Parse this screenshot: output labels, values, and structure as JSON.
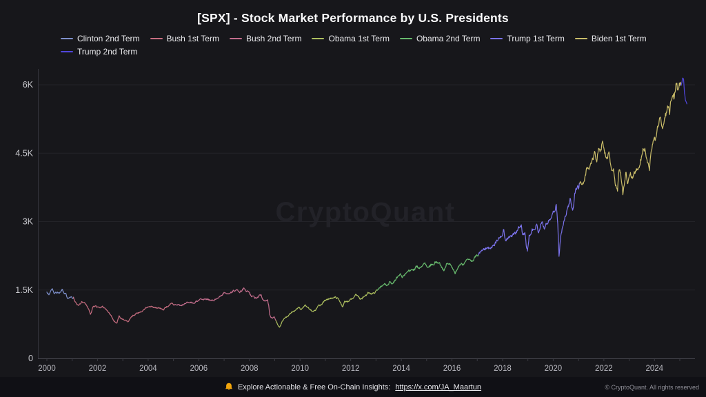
{
  "page": {
    "title": "[SPX] - Stock Market Performance by U.S. Presidents",
    "watermark": "CryptoQuant",
    "background_color": "#17171b"
  },
  "footer": {
    "promo_text": "Explore Actionable & Free On-Chain Insights:",
    "promo_link_text": "https://x.com/JA_Maartun",
    "copyright_text": "© CryptoQuant. All rights reserved",
    "bell_color": "#f2a50c",
    "background_color": "#101015"
  },
  "chart_data": {
    "type": "line",
    "title": "[SPX] - Stock Market Performance by U.S. Presidents",
    "xlabel": "",
    "ylabel": "",
    "legend_position": "top-left",
    "grid": "horizontal",
    "xlim": [
      1999.7,
      2025.5
    ],
    "ylim": [
      0,
      6300
    ],
    "x_ticks": [
      2000,
      2002,
      2004,
      2006,
      2008,
      2010,
      2012,
      2014,
      2016,
      2018,
      2020,
      2022,
      2024
    ],
    "y_ticks": [
      {
        "value": 0,
        "label": "0"
      },
      {
        "value": 1500,
        "label": "1.5K"
      },
      {
        "value": 3000,
        "label": "3K"
      },
      {
        "value": 4500,
        "label": "4.5K"
      },
      {
        "value": 6000,
        "label": "6K"
      }
    ],
    "axis_colors": {
      "tick_label": "#c9c9ce",
      "x_tick_label": "#b9b9c0",
      "grid": "#232329",
      "axis": "#46464e",
      "watermark": "#222228"
    },
    "series": [
      {
        "name": "Clinton 2nd Term",
        "color": "#7e90cc",
        "points": [
          [
            2000.0,
            1455
          ],
          [
            2000.08,
            1394
          ],
          [
            2000.17,
            1499
          ],
          [
            2000.22,
            1527
          ],
          [
            2000.3,
            1420
          ],
          [
            2000.42,
            1454
          ],
          [
            2000.5,
            1431
          ],
          [
            2000.6,
            1517
          ],
          [
            2000.67,
            1437
          ],
          [
            2000.75,
            1429
          ],
          [
            2000.83,
            1315
          ],
          [
            2000.92,
            1346
          ],
          [
            2001.0,
            1320
          ],
          [
            2001.05,
            1342
          ]
        ]
      },
      {
        "name": "Bush 1st Term",
        "color": "#c76d80",
        "points": [
          [
            2001.05,
            1342
          ],
          [
            2001.13,
            1240
          ],
          [
            2001.25,
            1160
          ],
          [
            2001.38,
            1249
          ],
          [
            2001.5,
            1211
          ],
          [
            2001.6,
            1133
          ],
          [
            2001.72,
            966
          ],
          [
            2001.83,
            1139
          ],
          [
            2001.92,
            1148
          ],
          [
            2002.0,
            1130
          ],
          [
            2002.1,
            1106
          ],
          [
            2002.2,
            1147
          ],
          [
            2002.35,
            1067
          ],
          [
            2002.5,
            968
          ],
          [
            2002.56,
            911
          ],
          [
            2002.65,
            815
          ],
          [
            2002.77,
            777
          ],
          [
            2002.85,
            936
          ],
          [
            2002.92,
            880
          ],
          [
            2003.0,
            856
          ],
          [
            2003.1,
            841
          ],
          [
            2003.2,
            800
          ],
          [
            2003.35,
            916
          ],
          [
            2003.5,
            975
          ],
          [
            2003.65,
            1008
          ],
          [
            2003.8,
            1050
          ],
          [
            2003.92,
            1112
          ],
          [
            2004.0,
            1131
          ],
          [
            2004.15,
            1126
          ],
          [
            2004.3,
            1107
          ],
          [
            2004.45,
            1101
          ],
          [
            2004.6,
            1064
          ],
          [
            2004.7,
            1114
          ],
          [
            2004.85,
            1173
          ],
          [
            2004.95,
            1212
          ],
          [
            2005.05,
            1181
          ]
        ]
      },
      {
        "name": "Bush 2nd Term",
        "color": "#c26d8c",
        "points": [
          [
            2005.05,
            1181
          ],
          [
            2005.2,
            1180
          ],
          [
            2005.32,
            1156
          ],
          [
            2005.45,
            1198
          ],
          [
            2005.55,
            1234
          ],
          [
            2005.65,
            1228
          ],
          [
            2005.78,
            1207
          ],
          [
            2005.88,
            1249
          ],
          [
            2006.0,
            1280
          ],
          [
            2006.15,
            1294
          ],
          [
            2006.32,
            1310
          ],
          [
            2006.45,
            1270
          ],
          [
            2006.55,
            1276
          ],
          [
            2006.7,
            1303
          ],
          [
            2006.85,
            1367
          ],
          [
            2006.95,
            1418
          ],
          [
            2007.05,
            1438
          ],
          [
            2007.2,
            1420
          ],
          [
            2007.38,
            1482
          ],
          [
            2007.5,
            1503
          ],
          [
            2007.6,
            1455
          ],
          [
            2007.7,
            1473
          ],
          [
            2007.78,
            1547
          ],
          [
            2007.85,
            1481
          ],
          [
            2007.95,
            1468
          ],
          [
            2008.05,
            1378
          ],
          [
            2008.2,
            1330
          ],
          [
            2008.28,
            1322
          ],
          [
            2008.38,
            1385
          ],
          [
            2008.45,
            1400
          ],
          [
            2008.55,
            1280
          ],
          [
            2008.65,
            1267
          ],
          [
            2008.72,
            1282
          ],
          [
            2008.76,
            1166
          ],
          [
            2008.8,
            968
          ],
          [
            2008.85,
            896
          ],
          [
            2008.9,
            876
          ],
          [
            2008.95,
            903
          ],
          [
            2009.0,
            890
          ],
          [
            2009.05,
            825
          ]
        ]
      },
      {
        "name": "Obama 1st Term",
        "color": "#aec05f",
        "points": [
          [
            2009.05,
            825
          ],
          [
            2009.12,
            735
          ],
          [
            2009.19,
            683
          ],
          [
            2009.28,
            797
          ],
          [
            2009.38,
            872
          ],
          [
            2009.5,
            919
          ],
          [
            2009.6,
            987
          ],
          [
            2009.7,
            1020
          ],
          [
            2009.78,
            1036
          ],
          [
            2009.88,
            1095
          ],
          [
            2009.95,
            1115
          ],
          [
            2010.05,
            1073
          ],
          [
            2010.2,
            1169
          ],
          [
            2010.35,
            1089
          ],
          [
            2010.5,
            1030
          ],
          [
            2010.6,
            1049
          ],
          [
            2010.7,
            1141
          ],
          [
            2010.85,
            1180
          ],
          [
            2010.95,
            1257
          ],
          [
            2011.05,
            1286
          ],
          [
            2011.2,
            1325
          ],
          [
            2011.35,
            1345
          ],
          [
            2011.5,
            1320
          ],
          [
            2011.6,
            1218
          ],
          [
            2011.68,
            1131
          ],
          [
            2011.78,
            1253
          ],
          [
            2011.85,
            1246
          ],
          [
            2011.95,
            1257
          ],
          [
            2012.05,
            1312
          ],
          [
            2012.2,
            1408
          ],
          [
            2012.4,
            1310
          ],
          [
            2012.55,
            1362
          ],
          [
            2012.7,
            1440
          ],
          [
            2012.78,
            1412
          ],
          [
            2012.85,
            1416
          ],
          [
            2012.95,
            1426
          ],
          [
            2013.05,
            1495
          ]
        ]
      },
      {
        "name": "Obama 2nd Term",
        "color": "#67b96d",
        "points": [
          [
            2013.05,
            1495
          ],
          [
            2013.2,
            1569
          ],
          [
            2013.35,
            1631
          ],
          [
            2013.45,
            1606
          ],
          [
            2013.55,
            1686
          ],
          [
            2013.62,
            1633
          ],
          [
            2013.7,
            1682
          ],
          [
            2013.8,
            1757
          ],
          [
            2013.88,
            1806
          ],
          [
            2013.95,
            1848
          ],
          [
            2014.05,
            1783
          ],
          [
            2014.2,
            1872
          ],
          [
            2014.35,
            1924
          ],
          [
            2014.5,
            1931
          ],
          [
            2014.6,
            2003
          ],
          [
            2014.7,
            1972
          ],
          [
            2014.8,
            2018
          ],
          [
            2014.88,
            2068
          ],
          [
            2014.95,
            2059
          ],
          [
            2015.05,
            1995
          ],
          [
            2015.2,
            2068
          ],
          [
            2015.38,
            2107
          ],
          [
            2015.5,
            2104
          ],
          [
            2015.62,
            1972
          ],
          [
            2015.68,
            1920
          ],
          [
            2015.8,
            2079
          ],
          [
            2015.88,
            2080
          ],
          [
            2015.95,
            2044
          ],
          [
            2016.05,
            1940
          ],
          [
            2016.12,
            1859
          ],
          [
            2016.2,
            1948
          ],
          [
            2016.35,
            2060
          ],
          [
            2016.5,
            2099
          ],
          [
            2016.6,
            2174
          ],
          [
            2016.7,
            2168
          ],
          [
            2016.8,
            2126
          ],
          [
            2016.88,
            2199
          ],
          [
            2016.95,
            2239
          ],
          [
            2017.05,
            2271
          ]
        ]
      },
      {
        "name": "Trump 1st Term",
        "color": "#7a72ea",
        "points": [
          [
            2017.05,
            2271
          ],
          [
            2017.2,
            2363
          ],
          [
            2017.35,
            2412
          ],
          [
            2017.5,
            2423
          ],
          [
            2017.6,
            2470
          ],
          [
            2017.7,
            2519
          ],
          [
            2017.8,
            2575
          ],
          [
            2017.88,
            2648
          ],
          [
            2017.95,
            2674
          ],
          [
            2018.05,
            2824
          ],
          [
            2018.12,
            2581
          ],
          [
            2018.2,
            2641
          ],
          [
            2018.28,
            2648
          ],
          [
            2018.4,
            2705
          ],
          [
            2018.5,
            2734
          ],
          [
            2018.6,
            2816
          ],
          [
            2018.7,
            2902
          ],
          [
            2018.74,
            2931
          ],
          [
            2018.8,
            2712
          ],
          [
            2018.88,
            2760
          ],
          [
            2018.95,
            2416
          ],
          [
            2018.98,
            2351
          ],
          [
            2019.05,
            2704
          ],
          [
            2019.2,
            2834
          ],
          [
            2019.35,
            2945
          ],
          [
            2019.42,
            2752
          ],
          [
            2019.5,
            2942
          ],
          [
            2019.58,
            2980
          ],
          [
            2019.64,
            2847
          ],
          [
            2019.7,
            2926
          ],
          [
            2019.8,
            2977
          ],
          [
            2019.88,
            3038
          ],
          [
            2019.95,
            3141
          ],
          [
            2020.0,
            3231
          ],
          [
            2020.05,
            3226
          ],
          [
            2020.12,
            3380
          ],
          [
            2020.18,
            2954
          ],
          [
            2020.23,
            2237
          ],
          [
            2020.28,
            2585
          ],
          [
            2020.35,
            2843
          ],
          [
            2020.45,
            3044
          ],
          [
            2020.55,
            3271
          ],
          [
            2020.62,
            3386
          ],
          [
            2020.68,
            3500
          ],
          [
            2020.72,
            3363
          ],
          [
            2020.78,
            3270
          ],
          [
            2020.85,
            3622
          ],
          [
            2020.95,
            3756
          ],
          [
            2021.0,
            3714
          ],
          [
            2021.05,
            3841
          ]
        ]
      },
      {
        "name": "Biden 1st Term",
        "color": "#c9bc69",
        "points": [
          [
            2021.05,
            3841
          ],
          [
            2021.15,
            3811
          ],
          [
            2021.25,
            3973
          ],
          [
            2021.35,
            4181
          ],
          [
            2021.45,
            4204
          ],
          [
            2021.55,
            4395
          ],
          [
            2021.65,
            4523
          ],
          [
            2021.72,
            4307
          ],
          [
            2021.8,
            4605
          ],
          [
            2021.88,
            4567
          ],
          [
            2021.95,
            4766
          ],
          [
            2022.05,
            4516
          ],
          [
            2022.12,
            4374
          ],
          [
            2022.2,
            4530
          ],
          [
            2022.3,
            4132
          ],
          [
            2022.38,
            4158
          ],
          [
            2022.46,
            3785
          ],
          [
            2022.54,
            3667
          ],
          [
            2022.6,
            4130
          ],
          [
            2022.68,
            3955
          ],
          [
            2022.75,
            3586
          ],
          [
            2022.82,
            3872
          ],
          [
            2022.88,
            4080
          ],
          [
            2022.95,
            3840
          ],
          [
            2023.05,
            4077
          ],
          [
            2023.15,
            3970
          ],
          [
            2023.25,
            4109
          ],
          [
            2023.38,
            4180
          ],
          [
            2023.5,
            4450
          ],
          [
            2023.56,
            4589
          ],
          [
            2023.65,
            4508
          ],
          [
            2023.72,
            4288
          ],
          [
            2023.8,
            4117
          ],
          [
            2023.88,
            4568
          ],
          [
            2023.95,
            4770
          ],
          [
            2024.05,
            4846
          ],
          [
            2024.15,
            5096
          ],
          [
            2024.25,
            5254
          ],
          [
            2024.32,
            5036
          ],
          [
            2024.4,
            5278
          ],
          [
            2024.5,
            5461
          ],
          [
            2024.56,
            5522
          ],
          [
            2024.6,
            5346
          ],
          [
            2024.65,
            5648
          ],
          [
            2024.72,
            5762
          ],
          [
            2024.78,
            5705
          ],
          [
            2024.85,
            6032
          ],
          [
            2024.92,
            5882
          ],
          [
            2024.98,
            6041
          ],
          [
            2025.05,
            5985
          ]
        ]
      },
      {
        "name": "Trump 2nd Term",
        "color": "#5146dd",
        "points": [
          [
            2025.05,
            5985
          ],
          [
            2025.1,
            6119
          ],
          [
            2025.13,
            6144
          ],
          [
            2025.17,
            5955
          ],
          [
            2025.2,
            5780
          ],
          [
            2025.24,
            5639
          ],
          [
            2025.28,
            5580
          ]
        ]
      }
    ]
  }
}
